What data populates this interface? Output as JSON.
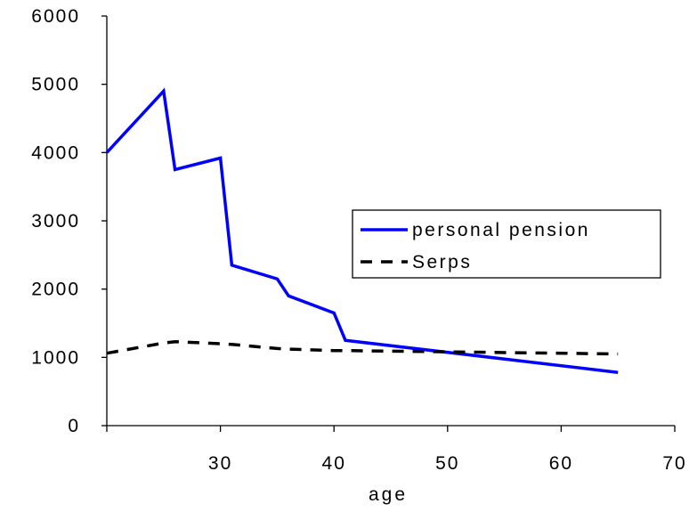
{
  "chart_data": {
    "type": "line",
    "title": "",
    "xlabel": "age",
    "ylabel": "",
    "xlim": [
      20,
      70
    ],
    "ylim": [
      0,
      6000
    ],
    "x_ticks": [
      30,
      40,
      50,
      60,
      70
    ],
    "y_ticks": [
      0,
      1000,
      2000,
      3000,
      4000,
      5000,
      6000
    ],
    "grid": false,
    "legend_position": "right",
    "series": [
      {
        "name": "personal pension",
        "color": "#0000ff",
        "line_style": "solid",
        "x": [
          20,
          25,
          26,
          30,
          31,
          35,
          36,
          40,
          41,
          65
        ],
        "y": [
          4000,
          4900,
          3750,
          3920,
          2350,
          2150,
          1900,
          1650,
          1250,
          780
        ]
      },
      {
        "name": "Serps",
        "color": "#000000",
        "line_style": "dashed",
        "x": [
          20,
          25,
          26,
          30,
          31,
          35,
          36,
          40,
          41,
          65
        ],
        "y": [
          1060,
          1210,
          1230,
          1200,
          1190,
          1130,
          1120,
          1100,
          1100,
          1050
        ]
      }
    ]
  }
}
